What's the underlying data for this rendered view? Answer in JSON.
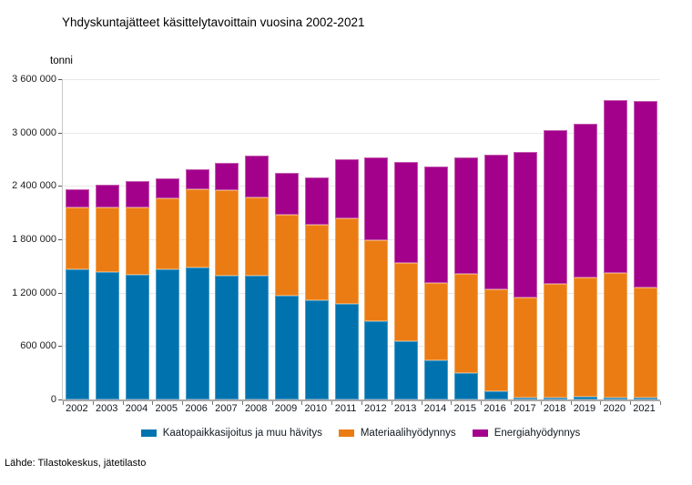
{
  "title": "Yhdyskuntajätteet käsittelytavoittain vuosina 2002-2021",
  "source": "Lähde: Tilastokeskus, jätetilasto",
  "y_axis": {
    "unit": "tonni",
    "tick_labels": [
      "3 600 000",
      "3 000 000",
      "2 400 000",
      "1 800 000",
      "1 200 000",
      "600 000",
      "0"
    ],
    "max": 3600000,
    "tick_interval": 600000
  },
  "colors": {
    "landfill": "#0073AF",
    "landfill_border": "#4d9dc7",
    "material": "#EB7C14",
    "material_border": "#f2a75c",
    "energy": "#A3008C",
    "energy_border": "#c45cad",
    "gridline": "#e8e8e8",
    "axis_line": "#a9a9a9"
  },
  "chart_data": {
    "type": "bar",
    "stacked": true,
    "title": "Yhdyskuntajätteet käsittelytavoittain vuosina 2002-2021",
    "ylabel": "tonni",
    "ylim": [
      0,
      3600000
    ],
    "grid": true,
    "legend_position": "bottom",
    "categories": [
      "2002",
      "2003",
      "2004",
      "2005",
      "2006",
      "2007",
      "2008",
      "2009",
      "2010",
      "2011",
      "2012",
      "2013",
      "2014",
      "2015",
      "2016",
      "2017",
      "2018",
      "2019",
      "2020",
      "2021"
    ],
    "series": [
      {
        "name": "Kaatopaikkasijoitus ja muu hävitys",
        "color": "#0073AF",
        "border": "#4d9dc7",
        "values": [
          1460000,
          1435000,
          1400000,
          1465000,
          1485000,
          1395000,
          1390000,
          1165000,
          1120000,
          1070000,
          880000,
          650000,
          440000,
          295000,
          90000,
          25000,
          20000,
          35000,
          20000,
          15000
        ]
      },
      {
        "name": "Materiaalihyödynnys",
        "color": "#EB7C14",
        "border": "#f2a75c",
        "values": [
          695000,
          720000,
          760000,
          795000,
          875000,
          955000,
          885000,
          915000,
          840000,
          965000,
          910000,
          880000,
          870000,
          1115000,
          1150000,
          1120000,
          1275000,
          1335000,
          1405000,
          1235000
        ]
      },
      {
        "name": "Energiahyödynnys",
        "color": "#A3008C",
        "border": "#c45cad",
        "values": [
          210000,
          260000,
          290000,
          230000,
          225000,
          305000,
          470000,
          465000,
          540000,
          665000,
          935000,
          1135000,
          1305000,
          1315000,
          1510000,
          1635000,
          1730000,
          1730000,
          1935000,
          2100000
        ]
      }
    ]
  }
}
